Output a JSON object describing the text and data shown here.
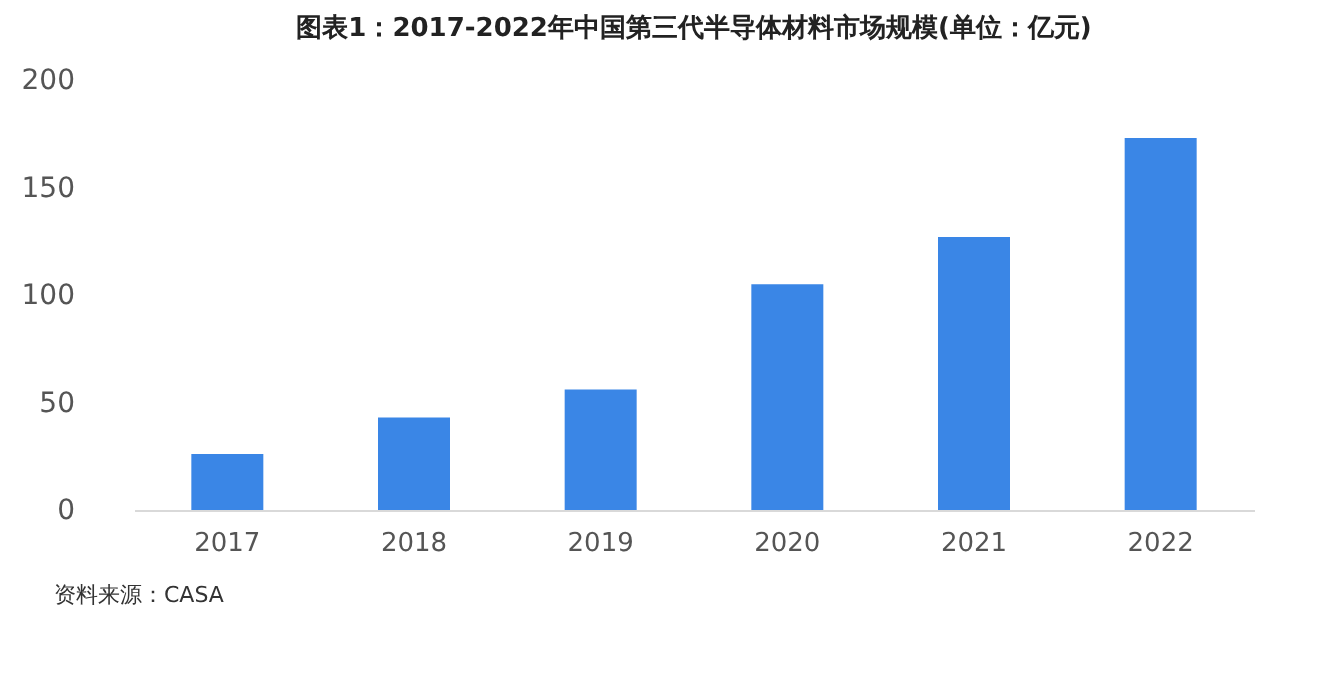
{
  "chart_data": {
    "type": "bar",
    "title": "图表1：2017-2022年中国第三代半导体材料市场规模(单位：亿元)",
    "categories": [
      "2017",
      "2018",
      "2019",
      "2020",
      "2021",
      "2022"
    ],
    "values": [
      26,
      43,
      56,
      105,
      127,
      173
    ],
    "color": "#3a86e6",
    "ylim": [
      0,
      200
    ],
    "yticks": [
      0,
      50,
      100,
      150,
      200
    ],
    "grid": false,
    "annotations": [
      "资料来源：CASA"
    ]
  }
}
